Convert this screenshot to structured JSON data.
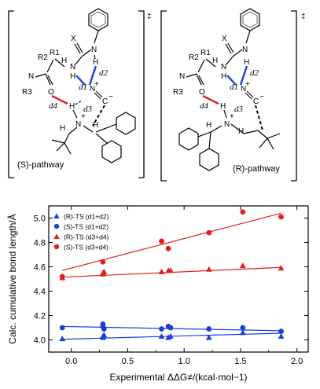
{
  "panels": [
    {
      "pathway_label": "(S)-pathway",
      "dagger": "‡"
    },
    {
      "pathway_label": "(R)-pathway",
      "dagger": "‡"
    }
  ],
  "molecule_labels": {
    "X": "X",
    "N": "N",
    "H": "H",
    "R1": "R1",
    "R2": "R2",
    "R3": "R3",
    "O": "O",
    "d1": "d1",
    "d2": "d2",
    "d3": "d3",
    "d4": "d4",
    "C": "C",
    "plus": "+",
    "minus": "−"
  },
  "colors": {
    "blue": "#1a3fd6",
    "red": "#e02020",
    "bond": "#000000"
  },
  "chart_data": {
    "type": "scatter",
    "xlabel": "Experimental ΔΔG≠/(kcal·mol−1)",
    "ylabel": "Calc. cumulative bond length/Å",
    "xlim": [
      -0.2,
      2.1
    ],
    "ylim": [
      3.9,
      5.1
    ],
    "xticks": [
      0.0,
      0.5,
      1.0,
      1.5,
      2.0
    ],
    "yticks": [
      4.0,
      4.2,
      4.4,
      4.6,
      4.8,
      5.0
    ],
    "legend_position": "top-left",
    "series": [
      {
        "name": "(R)-TS (d1+d2)",
        "color": "#1a3fd6",
        "marker": "triangle",
        "x": [
          -0.08,
          0.28,
          0.28,
          0.29,
          0.8,
          0.86,
          0.88,
          1.22,
          1.52,
          1.86
        ],
        "y": [
          4.01,
          4.03,
          4.02,
          4.04,
          4.03,
          4.02,
          4.03,
          4.02,
          4.06,
          4.03
        ],
        "fit": [
          [
            -0.08,
            4.005
          ],
          [
            1.86,
            4.055
          ]
        ]
      },
      {
        "name": "(S)-TS (d1+d2)",
        "color": "#1a3fd6",
        "marker": "circle",
        "x": [
          -0.08,
          0.28,
          0.28,
          0.29,
          0.8,
          0.86,
          0.88,
          1.22,
          1.52,
          1.86
        ],
        "y": [
          4.1,
          4.13,
          4.11,
          4.09,
          4.09,
          4.11,
          4.1,
          4.09,
          4.1,
          4.07
        ],
        "fit": [
          [
            -0.08,
            4.11
          ],
          [
            1.86,
            4.075
          ]
        ]
      },
      {
        "name": "(R)-TS (d3+d4)",
        "color": "#e02020",
        "marker": "triangle",
        "x": [
          -0.08,
          0.28,
          0.28,
          0.29,
          0.8,
          0.86,
          0.88,
          1.22,
          1.52,
          1.86
        ],
        "y": [
          4.51,
          4.55,
          4.54,
          4.56,
          4.56,
          4.57,
          4.57,
          4.58,
          4.61,
          4.59
        ],
        "fit": [
          [
            -0.08,
            4.515
          ],
          [
            1.86,
            4.595
          ]
        ]
      },
      {
        "name": "(S)-TS (d3+d4)",
        "color": "#e02020",
        "marker": "circle",
        "x": [
          -0.08,
          0.28,
          0.8,
          0.86,
          1.22,
          1.52,
          1.86
        ],
        "y": [
          4.52,
          4.64,
          4.81,
          4.75,
          4.88,
          5.05,
          5.01
        ],
        "fit": [
          [
            -0.08,
            4.57
          ],
          [
            1.86,
            5.04
          ]
        ]
      }
    ]
  }
}
